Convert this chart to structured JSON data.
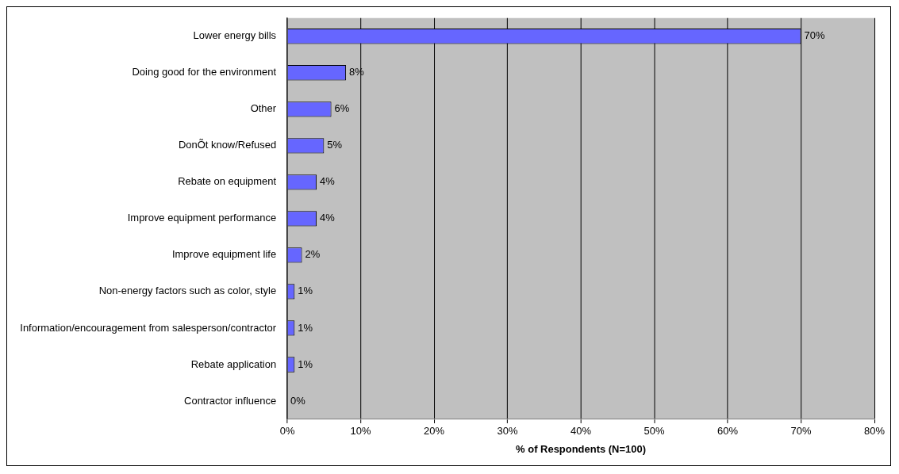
{
  "chart_data": {
    "type": "bar",
    "orientation": "horizontal",
    "xlabel": "% of Respondents (N=100)",
    "categories": [
      "Lower energy bills",
      "Doing good for the environment",
      "Other",
      "DonÕt know/Refused",
      "Rebate on equipment",
      "Improve equipment performance",
      "Improve equipment life",
      "Non-energy factors such as color, style",
      "Information/encouragement from salesperson/contractor",
      "Rebate application",
      "Contractor influence"
    ],
    "values": [
      70,
      8,
      6,
      5,
      4,
      4,
      2,
      1,
      1,
      1,
      0
    ],
    "value_labels": [
      "70%",
      "8%",
      "6%",
      "5%",
      "4%",
      "4%",
      "2%",
      "1%",
      "1%",
      "1%",
      "0%"
    ],
    "color": "#6666ff",
    "xlim": [
      0,
      80
    ],
    "xticks": [
      {
        "value": 0,
        "label": "0%"
      },
      {
        "value": 10,
        "label": "10%"
      },
      {
        "value": 20,
        "label": "20%"
      },
      {
        "value": 30,
        "label": "30%"
      },
      {
        "value": 40,
        "label": "40%"
      },
      {
        "value": 50,
        "label": "50%"
      },
      {
        "value": 60,
        "label": "60%"
      },
      {
        "value": 70,
        "label": "70%"
      },
      {
        "value": 80,
        "label": "80%"
      }
    ],
    "grid": "x",
    "legend": false
  }
}
